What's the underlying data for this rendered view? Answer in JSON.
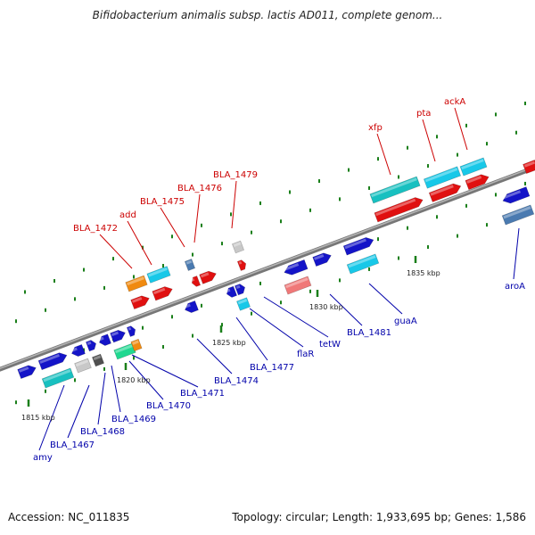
{
  "title": "Bifidobacterium animalis subsp. lactis AD011, complete genom...",
  "footer": {
    "accession": "Accession: NC_011835",
    "topology": "Topology: circular; Length: 1,933,695 bp; Genes: 1,586"
  },
  "scale_labels": [
    "1815 kbp",
    "1820 kbp",
    "1825 kbp",
    "1830 kbp",
    "1835 kbp"
  ],
  "upper_labels": [
    "BLA_1472",
    "add",
    "BLA_1475",
    "BLA_1476",
    "BLA_1479",
    "xfp",
    "pta",
    "ackA"
  ],
  "lower_labels": [
    "amy",
    "BLA_1467",
    "BLA_1468",
    "BLA_1469",
    "BLA_1470",
    "BLA_1471",
    "BLA_1474",
    "BLA_1477",
    "flaR",
    "tetW",
    "BLA_1481",
    "guaA",
    "aroA"
  ],
  "colors": {
    "upper_label": "#cc0000",
    "lower_label": "#0000aa",
    "backbone": "#8a8a8a",
    "tick": "#1a7f1a",
    "red": "#e01010",
    "blue": "#1414c8",
    "cyan": "#18c8e8",
    "teal": "#18c0c0",
    "orange": "#f08a10",
    "steel": "#4a7ab0",
    "grey": "#c8c8c8",
    "dark_grey": "#505050",
    "pink": "#f07878",
    "green": "#20d890"
  }
}
